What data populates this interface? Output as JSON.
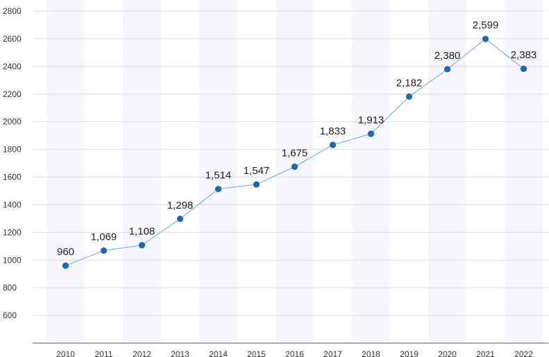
{
  "chart_data": {
    "type": "line",
    "title": "",
    "xlabel": "",
    "ylabel": "",
    "categories": [
      "2010",
      "2011",
      "2012",
      "2013",
      "2014",
      "2015",
      "2016",
      "2017",
      "2018",
      "2019",
      "2020",
      "2021",
      "2022"
    ],
    "series": [
      {
        "name": "Value",
        "values": [
          960,
          1069,
          1108,
          1298,
          1514,
          1547,
          1675,
          1833,
          1913,
          2182,
          2380,
          2599,
          2383
        ],
        "labels": [
          "960",
          "1,069",
          "1,108",
          "1,298",
          "1,514",
          "1,547",
          "1,675",
          "1,833",
          "1,913",
          "2,182",
          "2,380",
          "2,599",
          "2,383"
        ],
        "color": "#1f66b5",
        "line_color": "#7fb2e0"
      }
    ],
    "ylim": [
      400,
      2800
    ],
    "yticks": [
      600,
      800,
      1000,
      1200,
      1400,
      1600,
      1800,
      2000,
      2200,
      2400,
      2600,
      2800
    ],
    "ytick_labels": [
      "600",
      "800",
      "1000",
      "1200",
      "1400",
      "1600",
      "1800",
      "2000",
      "2200",
      "2400",
      "2600",
      "2800"
    ],
    "grid": true,
    "legend": "none",
    "colors": {
      "grid": "#dcdcdc",
      "axis": "#555555",
      "band": "#f4f6fb"
    }
  }
}
